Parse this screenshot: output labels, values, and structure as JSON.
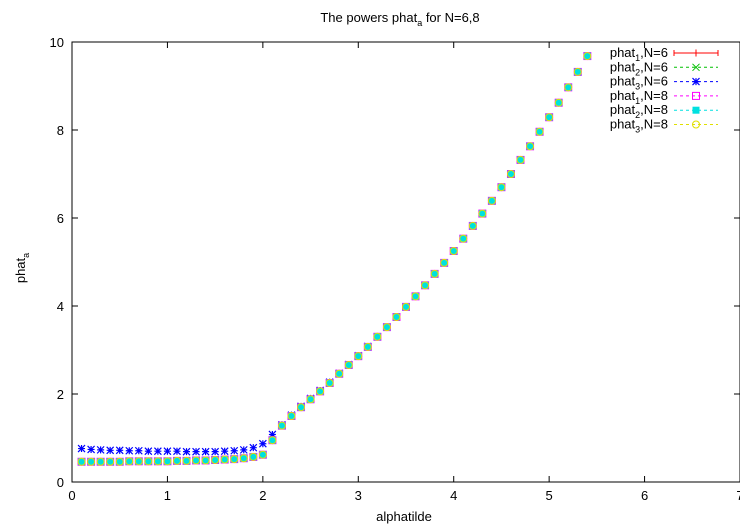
{
  "chart_data": {
    "type": "scatter",
    "title": "The powers phat_a for N=6,8",
    "title_parts": {
      "pre": "The powers phat",
      "sub": "a",
      "post": " for N=6,8"
    },
    "xlabel": "alphatilde",
    "ylabel": "phat_a",
    "ylabel_parts": {
      "pre": "phat",
      "sub": "a"
    },
    "xlim": [
      0,
      7
    ],
    "ylim": [
      0,
      10
    ],
    "xticks": [
      "0",
      "1",
      "2",
      "3",
      "4",
      "5",
      "6",
      "7"
    ],
    "yticks": [
      "0",
      "2",
      "4",
      "6",
      "8",
      "10"
    ],
    "grid": false,
    "legend_position": "top-right",
    "x": [
      0.1,
      0.2,
      0.3,
      0.4,
      0.5,
      0.6,
      0.7,
      0.8,
      0.9,
      1.0,
      1.1,
      1.2,
      1.3,
      1.4,
      1.5,
      1.6,
      1.7,
      1.8,
      1.9,
      2.0,
      2.1,
      2.2,
      2.3,
      2.4,
      2.5,
      2.6,
      2.7,
      2.8,
      2.9,
      3.0,
      3.1,
      3.2,
      3.3,
      3.4,
      3.5,
      3.6,
      3.7,
      3.8,
      3.9,
      4.0,
      4.1,
      4.2,
      4.3,
      4.4,
      4.5,
      4.6,
      4.7,
      4.8,
      4.9,
      5.0,
      5.1,
      5.2,
      5.3,
      5.4
    ],
    "series": [
      {
        "name": "phat_1,N=6",
        "name_parts": {
          "pre": "phat",
          "sub": "1",
          "post": ",N=6"
        },
        "color": "#ff0000",
        "marker": "plus",
        "values": [
          0.46,
          0.46,
          0.46,
          0.46,
          0.46,
          0.47,
          0.47,
          0.47,
          0.47,
          0.47,
          0.48,
          0.48,
          0.49,
          0.49,
          0.5,
          0.51,
          0.52,
          0.54,
          0.57,
          0.62,
          0.95,
          1.28,
          1.5,
          1.7,
          1.88,
          2.06,
          2.25,
          2.46,
          2.66,
          2.86,
          3.07,
          3.3,
          3.52,
          3.75,
          3.98,
          4.22,
          4.47,
          4.73,
          4.98,
          5.25,
          5.53,
          5.82,
          6.1,
          6.39,
          6.7,
          7.0,
          7.32,
          7.63,
          7.96,
          8.29,
          8.62,
          8.97,
          9.32,
          9.68
        ]
      },
      {
        "name": "phat_2,N=6",
        "name_parts": {
          "pre": "phat",
          "sub": "2",
          "post": ",N=6"
        },
        "color": "#00c000",
        "marker": "cross",
        "values": [
          0.46,
          0.46,
          0.46,
          0.46,
          0.46,
          0.47,
          0.47,
          0.47,
          0.47,
          0.47,
          0.48,
          0.48,
          0.49,
          0.49,
          0.5,
          0.51,
          0.52,
          0.54,
          0.57,
          0.62,
          0.95,
          1.28,
          1.5,
          1.7,
          1.88,
          2.06,
          2.25,
          2.46,
          2.66,
          2.86,
          3.07,
          3.3,
          3.52,
          3.75,
          3.98,
          4.22,
          4.47,
          4.73,
          4.98,
          5.25,
          5.53,
          5.82,
          6.1,
          6.39,
          6.7,
          7.0,
          7.32,
          7.63,
          7.96,
          8.29,
          8.62,
          8.97,
          9.32,
          9.68
        ]
      },
      {
        "name": "phat_3,N=6",
        "name_parts": {
          "pre": "phat",
          "sub": "3",
          "post": ",N=6"
        },
        "color": "#0000ff",
        "marker": "star",
        "values": [
          0.76,
          0.74,
          0.73,
          0.72,
          0.72,
          0.71,
          0.71,
          0.7,
          0.7,
          0.7,
          0.7,
          0.69,
          0.69,
          0.69,
          0.69,
          0.7,
          0.71,
          0.73,
          0.78,
          0.87,
          1.08,
          1.3,
          1.52,
          1.72,
          1.9,
          2.08,
          2.27,
          2.47,
          2.67,
          2.87,
          3.08,
          3.3,
          3.52,
          3.75,
          3.98,
          4.22,
          4.47,
          4.73,
          4.98,
          5.25,
          5.53,
          5.82,
          6.1,
          6.39,
          6.7,
          7.0,
          7.32,
          7.63,
          7.96,
          8.29,
          8.62,
          8.97,
          9.32,
          9.68
        ]
      },
      {
        "name": "phat_1,N=8",
        "name_parts": {
          "pre": "phat",
          "sub": "1",
          "post": ",N=8"
        },
        "color": "#ff00ff",
        "marker": "square",
        "values": [
          0.46,
          0.46,
          0.46,
          0.46,
          0.46,
          0.47,
          0.47,
          0.47,
          0.47,
          0.47,
          0.48,
          0.48,
          0.49,
          0.49,
          0.5,
          0.51,
          0.52,
          0.54,
          0.57,
          0.62,
          0.95,
          1.28,
          1.5,
          1.7,
          1.88,
          2.06,
          2.25,
          2.46,
          2.66,
          2.86,
          3.07,
          3.3,
          3.52,
          3.75,
          3.98,
          4.22,
          4.47,
          4.73,
          4.98,
          5.25,
          5.53,
          5.82,
          6.1,
          6.39,
          6.7,
          7.0,
          7.32,
          7.63,
          7.96,
          8.29,
          8.62,
          8.97,
          9.32,
          9.68
        ]
      },
      {
        "name": "phat_2,N=8",
        "name_parts": {
          "pre": "phat",
          "sub": "2",
          "post": ",N=8"
        },
        "color": "#00e0e0",
        "marker": "filled-square",
        "values": [
          0.46,
          0.46,
          0.46,
          0.46,
          0.46,
          0.47,
          0.47,
          0.47,
          0.47,
          0.47,
          0.48,
          0.48,
          0.49,
          0.49,
          0.5,
          0.51,
          0.52,
          0.54,
          0.57,
          0.62,
          0.95,
          1.28,
          1.5,
          1.7,
          1.88,
          2.06,
          2.25,
          2.46,
          2.66,
          2.86,
          3.07,
          3.3,
          3.52,
          3.75,
          3.98,
          4.22,
          4.47,
          4.73,
          4.98,
          5.25,
          5.53,
          5.82,
          6.1,
          6.39,
          6.7,
          7.0,
          7.32,
          7.63,
          7.96,
          8.29,
          8.62,
          8.97,
          9.32,
          9.68
        ]
      },
      {
        "name": "phat_3,N=8",
        "name_parts": {
          "pre": "phat",
          "sub": "3",
          "post": ",N=8"
        },
        "color": "#e0e000",
        "marker": "circle",
        "values": [
          0.46,
          0.46,
          0.46,
          0.46,
          0.46,
          0.47,
          0.47,
          0.47,
          0.47,
          0.47,
          0.48,
          0.48,
          0.49,
          0.49,
          0.5,
          0.51,
          0.52,
          0.54,
          0.57,
          0.62,
          0.95,
          1.28,
          1.5,
          1.7,
          1.88,
          2.06,
          2.25,
          2.46,
          2.66,
          2.86,
          3.07,
          3.3,
          3.52,
          3.75,
          3.98,
          4.22,
          4.47,
          4.73,
          4.98,
          5.25,
          5.53,
          5.82,
          6.1,
          6.39,
          6.7,
          7.0,
          7.32,
          7.63,
          7.96,
          8.29,
          8.62,
          8.97,
          9.32,
          9.68
        ]
      }
    ]
  }
}
